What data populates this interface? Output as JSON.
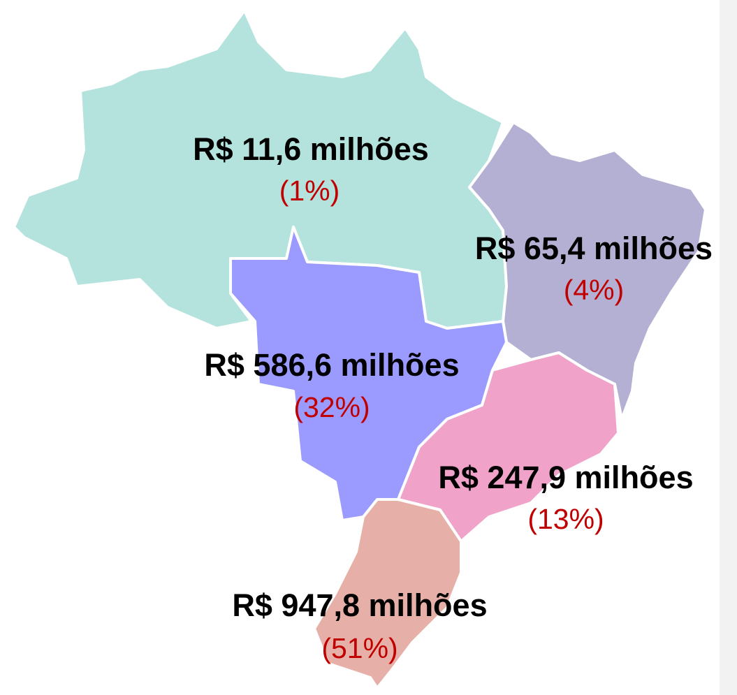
{
  "regions": [
    {
      "amount": "R$ 11,6 milhões",
      "share": "(1%)",
      "color": "#b3e3dc"
    },
    {
      "amount": "R$ 65,4 milhões",
      "share": "(4%)",
      "color": "#b4b0d3"
    },
    {
      "amount": "R$ 586,6 milhões",
      "share": "(32%)",
      "color": "#9b9bff"
    },
    {
      "amount": "R$ 247,9 milhões",
      "share": "(13%)",
      "color": "#f0a2c9"
    },
    {
      "amount": "R$ 947,8 milhões",
      "share": "(51%)",
      "color": "#e6b0a8"
    }
  ]
}
